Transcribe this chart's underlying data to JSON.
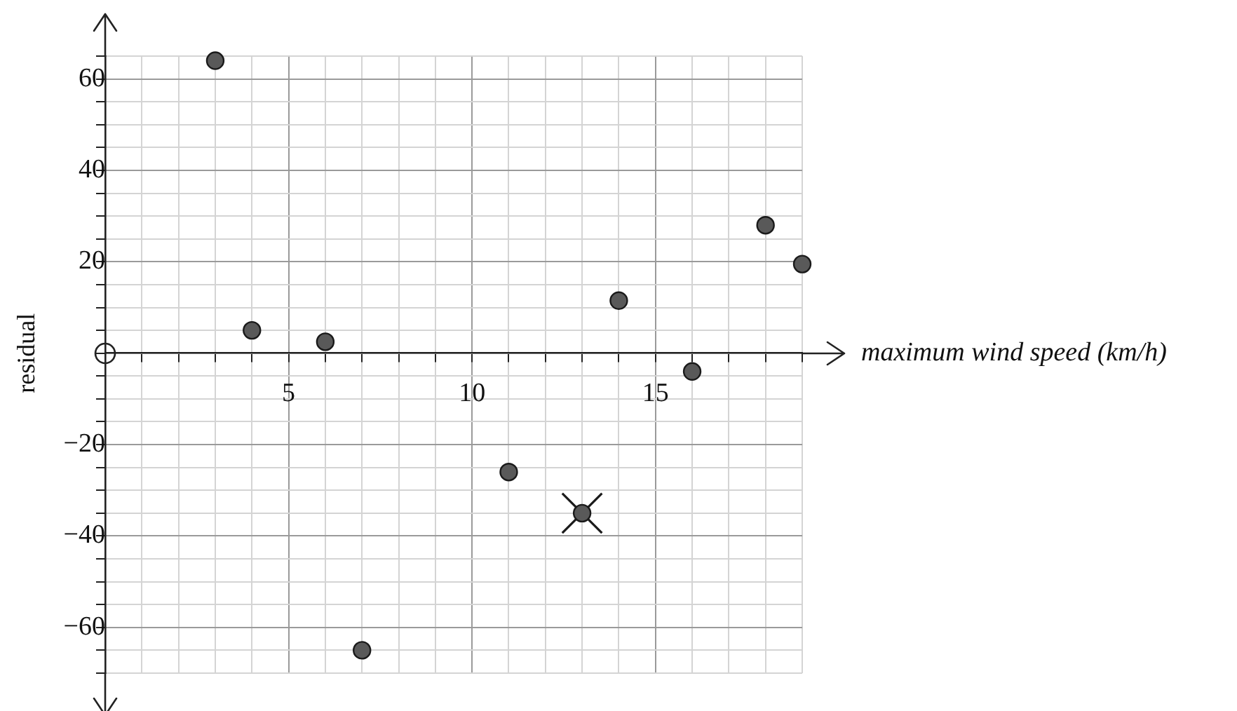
{
  "chart_data": {
    "type": "scatter",
    "xlabel": "maximum wind speed (km/h)",
    "ylabel": "residual",
    "xlim": [
      0,
      19
    ],
    "ylim": [
      -70,
      65
    ],
    "xticks": [
      {
        "value": 0,
        "label": null
      },
      {
        "value": 1,
        "label": null
      },
      {
        "value": 2,
        "label": null
      },
      {
        "value": 3,
        "label": null
      },
      {
        "value": 4,
        "label": null
      },
      5,
      {
        "value": 6,
        "label": null
      },
      {
        "value": 7,
        "label": null
      },
      {
        "value": 8,
        "label": null
      },
      {
        "value": 9,
        "label": null
      },
      10,
      {
        "value": 11,
        "label": null
      },
      {
        "value": 12,
        "label": null
      },
      {
        "value": 13,
        "label": null
      },
      {
        "value": 14,
        "label": null
      },
      15,
      {
        "value": 16,
        "label": null
      },
      {
        "value": 17,
        "label": null
      },
      {
        "value": 18,
        "label": null
      },
      {
        "value": 19,
        "label": null
      }
    ],
    "yticks": [
      {
        "value": -70,
        "label": null
      },
      {
        "value": -65,
        "label": null
      },
      {
        "value": -60,
        "label": "−60"
      },
      {
        "value": -55,
        "label": null
      },
      {
        "value": -50,
        "label": null
      },
      {
        "value": -45,
        "label": null
      },
      {
        "value": -40,
        "label": "−40"
      },
      {
        "value": -35,
        "label": null
      },
      {
        "value": -30,
        "label": null
      },
      {
        "value": -25,
        "label": null
      },
      {
        "value": -20,
        "label": "−20"
      },
      {
        "value": -15,
        "label": null
      },
      {
        "value": -10,
        "label": null
      },
      {
        "value": -5,
        "label": null
      },
      {
        "value": 0,
        "label": null
      },
      {
        "value": 5,
        "label": null
      },
      {
        "value": 10,
        "label": null
      },
      {
        "value": 15,
        "label": null
      },
      20,
      {
        "value": 25,
        "label": null
      },
      {
        "value": 30,
        "label": null
      },
      {
        "value": 35,
        "label": null
      },
      40,
      {
        "value": 45,
        "label": null
      },
      {
        "value": 50,
        "label": null
      },
      {
        "value": 55,
        "label": null
      },
      60,
      {
        "value": 65,
        "label": null
      }
    ],
    "grid": true,
    "marker": "circle",
    "series": [
      {
        "color": "#595959",
        "x": [
          3,
          4,
          6,
          7,
          11,
          13,
          14,
          16,
          18,
          19
        ],
        "values": [
          64,
          5,
          2.5,
          -65,
          -26,
          -35,
          11.5,
          -4,
          28,
          19.5
        ]
      },
      {
        "color": "#1a1a1a",
        "marker": "cross",
        "x": [
          13
        ],
        "values": [
          -35
        ]
      }
    ]
  }
}
